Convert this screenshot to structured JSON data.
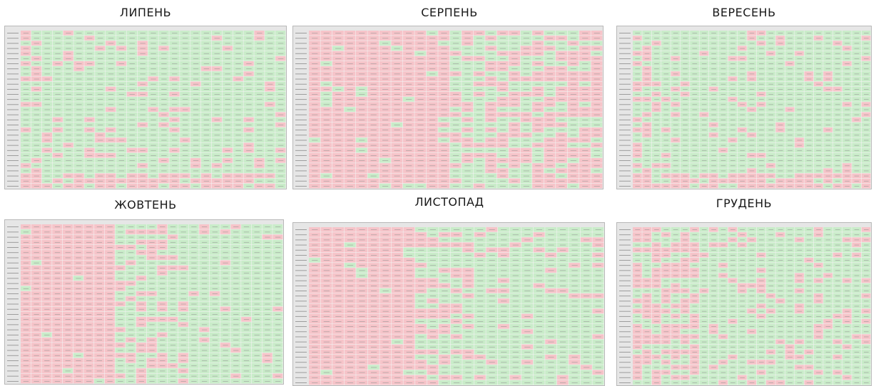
{
  "months": [
    {
      "title": "ЛИПЕНЬ",
      "layout": "mostly-green"
    },
    {
      "title": "СЕРПЕНЬ",
      "layout": "mostly-red"
    },
    {
      "title": "ВЕРЕСЕНЬ",
      "layout": "mostly-green"
    },
    {
      "title": "ЖОВТЕНЬ",
      "layout": "red-left-green-right"
    },
    {
      "title": "ЛИСТОПАД",
      "layout": "red-left-green-right"
    },
    {
      "title": "ГРУДЕНЬ",
      "layout": "mixed"
    }
  ],
  "colors": {
    "positive_cell": "#c9ecc9",
    "negative_cell": "#f6c4c9",
    "header_cell": "#e6e6e6",
    "grid_line": "#ffffff",
    "cell_text": "#8a8a8a"
  }
}
